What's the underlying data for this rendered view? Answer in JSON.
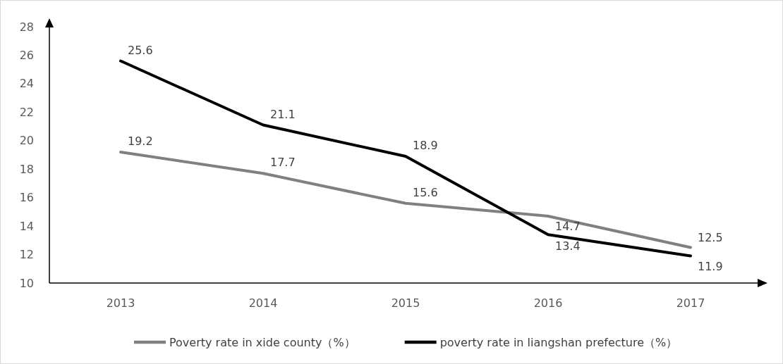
{
  "chart_data": {
    "type": "line",
    "categories": [
      "2013",
      "2014",
      "2015",
      "2016",
      "2017"
    ],
    "series": [
      {
        "name": "Poverty rate in xide county（%）",
        "color": "#808080",
        "values": [
          19.2,
          17.7,
          15.6,
          14.7,
          12.5
        ]
      },
      {
        "name": "poverty rate in liangshan prefecture（%）",
        "color": "#000000",
        "values": [
          25.6,
          21.1,
          18.9,
          13.4,
          11.9
        ]
      }
    ],
    "ylim": [
      10,
      28
    ],
    "yticks": [
      10,
      12,
      14,
      16,
      18,
      20,
      22,
      24,
      26,
      28
    ],
    "data_labels": true,
    "legend": "bottom",
    "marker": "none",
    "line_style": "solid"
  }
}
